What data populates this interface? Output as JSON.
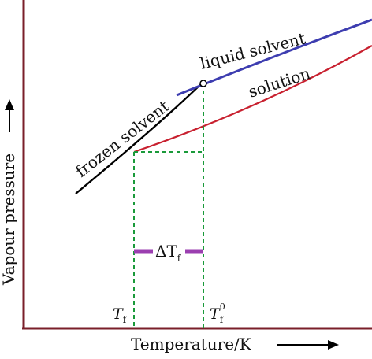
{
  "axes": {
    "x_label": "Temperature/K",
    "y_label": "Vapour pressure"
  },
  "curves": {
    "frozen": {
      "label": "frozen solvent",
      "color": "#000000"
    },
    "liquid": {
      "label": "liquid solvent",
      "color": "#3d3db0"
    },
    "solution": {
      "label": "solution",
      "color": "#c8202f"
    }
  },
  "markers": {
    "tf": {
      "symbol": "T",
      "sub": "f"
    },
    "tf0": {
      "symbol": "T",
      "sup": "0",
      "sub": "f"
    },
    "delta": {
      "symbol": "ΔT",
      "sub": "f"
    }
  },
  "colors": {
    "axis": "#7a1f2a",
    "guides": "#1a9a3a",
    "delta_bar": "#9b3fb0"
  }
}
